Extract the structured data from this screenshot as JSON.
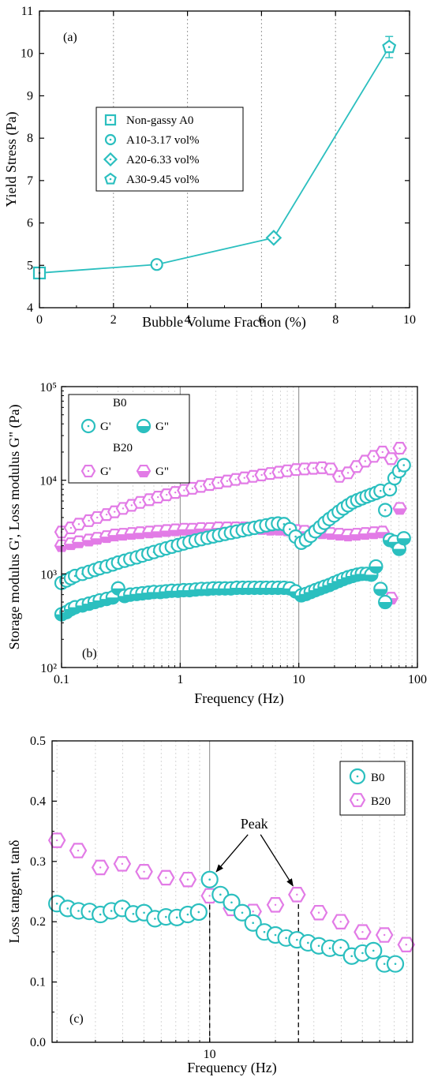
{
  "colors": {
    "cyan": "#2BBFBF",
    "magenta": "#E27BE6",
    "grid": "#BFBFBF",
    "axis": "#000000"
  },
  "chart_data": [
    {
      "type": "line",
      "panel_label": "(a)",
      "xlabel": "Bubble Volume Fraction (%)",
      "ylabel": "Yield Stress (Pa)",
      "xlim": [
        0,
        10
      ],
      "ylim": [
        4,
        11
      ],
      "xticks": [
        "0",
        "2",
        "4",
        "6",
        "8",
        "10"
      ],
      "yticks": [
        "4",
        "5",
        "6",
        "7",
        "8",
        "9",
        "10",
        "11"
      ],
      "grid": "vertical dashed at 2, 4, 6, 8",
      "legend_placement": "left-middle",
      "series": [
        {
          "x": [
            0,
            3.17,
            6.33,
            9.45
          ],
          "y": [
            4.82,
            5.02,
            5.65,
            10.15
          ],
          "yerr": [
            0.12,
            0.05,
            0.08,
            0.25
          ]
        }
      ],
      "points": [
        {
          "name": "Non-gassy A0",
          "marker": "square",
          "x": 0,
          "y": 4.82
        },
        {
          "name": "A10-3.17 vol%",
          "marker": "circle",
          "x": 3.17,
          "y": 5.02
        },
        {
          "name": "A20-6.33 vol%",
          "marker": "diamond",
          "x": 6.33,
          "y": 5.65
        },
        {
          "name": "A30-9.45 vol%",
          "marker": "pentagon",
          "x": 9.45,
          "y": 10.15
        }
      ]
    },
    {
      "type": "scatter",
      "panel_label": "(b)",
      "xlabel": "Frequency (Hz)",
      "ylabel": "Storage modulus G', Loss modulus G\" (Pa)",
      "xscale": "log",
      "yscale": "log",
      "xlim": [
        0.1,
        100
      ],
      "ylim": [
        100,
        100000
      ],
      "xticks": [
        "0.1",
        "1",
        "10",
        "100"
      ],
      "yticks": [
        "10²",
        "10³",
        "10⁴",
        "10⁵"
      ],
      "grid": "log minor vertical dotted, solid at 1 and 10",
      "legend_placement": "top-left",
      "legend": {
        "groups": [
          {
            "title": "B0",
            "entries": [
              "G'",
              "G\""
            ]
          },
          {
            "title": "B20",
            "entries": [
              "G'",
              "G\""
            ]
          }
        ]
      },
      "series": [
        {
          "group": "B0",
          "name": "G'",
          "marker": "open-circle",
          "x": [
            0.1,
            0.11,
            0.12,
            0.13,
            0.15,
            0.17,
            0.19,
            0.21,
            0.24,
            0.27,
            0.3,
            0.34,
            0.38,
            0.43,
            0.48,
            0.54,
            0.6,
            0.68,
            0.76,
            0.85,
            0.96,
            1.07,
            1.2,
            1.35,
            1.51,
            1.7,
            1.9,
            2.13,
            2.39,
            2.68,
            3.0,
            3.37,
            3.77,
            4.23,
            4.74,
            5.32,
            5.96,
            6.68,
            7.5,
            8.4,
            9.4,
            10.5,
            11.5,
            12.6,
            13.8,
            15.1,
            16.5,
            18.1,
            19.8,
            21.7,
            23.7,
            26.0,
            28.4,
            31.1,
            34.0,
            37.3,
            40.8,
            44.7,
            48.9,
            53.5,
            58.6,
            64.1,
            70.2,
            76.8
          ],
          "y": [
            800,
            850,
            900,
            950,
            1000,
            1050,
            1100,
            1150,
            1200,
            1260,
            1320,
            1380,
            1440,
            1500,
            1570,
            1640,
            1710,
            1790,
            1870,
            1950,
            2030,
            2110,
            2190,
            2270,
            2350,
            2430,
            2510,
            2590,
            2670,
            2750,
            2830,
            2920,
            3010,
            3100,
            3200,
            3300,
            3400,
            3450,
            3400,
            3000,
            2500,
            2150,
            2300,
            2550,
            2850,
            3150,
            3500,
            3850,
            4200,
            4600,
            5000,
            5400,
            5800,
            6100,
            6400,
            6700,
            7000,
            7300,
            7700,
            4800,
            8000,
            10500,
            12500,
            14500
          ]
        },
        {
          "group": "B0",
          "name": "G\"",
          "marker": "half-filled-circle",
          "x": [
            0.1,
            0.11,
            0.12,
            0.13,
            0.15,
            0.17,
            0.19,
            0.21,
            0.24,
            0.27,
            0.3,
            0.34,
            0.38,
            0.43,
            0.48,
            0.54,
            0.6,
            0.68,
            0.76,
            0.85,
            0.96,
            1.07,
            1.2,
            1.35,
            1.51,
            1.7,
            1.9,
            2.13,
            2.39,
            2.68,
            3.0,
            3.37,
            3.77,
            4.23,
            4.74,
            5.32,
            5.96,
            6.68,
            7.5,
            8.4,
            9.4,
            10.5,
            11.5,
            12.6,
            13.8,
            15.1,
            16.5,
            18.1,
            19.8,
            21.7,
            23.7,
            26.0,
            28.4,
            31.1,
            34.0,
            37.3,
            40.8,
            44.7,
            48.9,
            53.5,
            58.6,
            64.1,
            70.2,
            76.8
          ],
          "y": [
            370,
            390,
            420,
            440,
            460,
            480,
            500,
            520,
            540,
            560,
            700,
            580,
            600,
            610,
            620,
            630,
            640,
            640,
            650,
            660,
            660,
            670,
            670,
            680,
            690,
            690,
            700,
            700,
            700,
            700,
            710,
            710,
            710,
            710,
            710,
            710,
            710,
            710,
            710,
            700,
            650,
            590,
            610,
            640,
            670,
            700,
            730,
            760,
            800,
            840,
            880,
            920,
            950,
            980,
            1000,
            1000,
            980,
            1200,
            690,
            500,
            2300,
            2200,
            1850,
            2400
          ]
        },
        {
          "group": "B20",
          "name": "G'",
          "marker": "open-hexagon",
          "x": [
            0.1,
            0.12,
            0.14,
            0.17,
            0.2,
            0.24,
            0.28,
            0.33,
            0.39,
            0.46,
            0.55,
            0.65,
            0.77,
            0.91,
            1.08,
            1.27,
            1.5,
            1.78,
            2.1,
            2.49,
            2.94,
            3.48,
            4.12,
            4.87,
            5.76,
            6.8,
            8.0,
            9.5,
            11.2,
            13.3,
            15.7,
            18.6,
            22.0,
            26.0,
            30.7,
            36.3,
            43.0,
            50.8,
            60.1,
            71.0
          ],
          "y": [
            2800,
            3100,
            3400,
            3700,
            4000,
            4300,
            4600,
            5000,
            5400,
            5800,
            6200,
            6600,
            7000,
            7400,
            7800,
            8200,
            8600,
            9000,
            9400,
            9800,
            10200,
            10600,
            11000,
            11400,
            11800,
            12200,
            12600,
            13000,
            13200,
            13400,
            13600,
            13200,
            11000,
            12000,
            14000,
            16000,
            18000,
            20000,
            17000,
            22000
          ]
        },
        {
          "group": "B20",
          "name": "G\"",
          "marker": "half-filled-hexagon",
          "x": [
            0.1,
            0.12,
            0.14,
            0.17,
            0.2,
            0.24,
            0.28,
            0.33,
            0.39,
            0.46,
            0.55,
            0.65,
            0.77,
            0.91,
            1.08,
            1.27,
            1.5,
            1.78,
            2.1,
            2.49,
            2.94,
            3.48,
            4.12,
            4.87,
            5.76,
            6.8,
            8.0,
            9.5,
            11.2,
            13.3,
            15.7,
            18.6,
            22.0,
            26.0,
            30.7,
            36.3,
            43.0,
            50.8,
            60.1,
            71.0
          ],
          "y": [
            2000,
            2100,
            2200,
            2300,
            2400,
            2500,
            2600,
            2650,
            2700,
            2750,
            2800,
            2850,
            2900,
            2950,
            3000,
            3000,
            3050,
            3050,
            3100,
            3100,
            3100,
            3100,
            3100,
            3050,
            3000,
            3000,
            2950,
            2900,
            2850,
            2800,
            2750,
            2700,
            2650,
            2600,
            2650,
            2700,
            2750,
            2800,
            550,
            5000
          ]
        }
      ]
    },
    {
      "type": "scatter",
      "panel_label": "(c)",
      "xlabel": "Frequency (Hz)",
      "ylabel": "Loss tangent, tanδ",
      "xscale": "log",
      "xlim": [
        1.9,
        85
      ],
      "ylim": [
        0.0,
        0.5
      ],
      "xticks": [
        "10"
      ],
      "yticks": [
        "0.0",
        "0.1",
        "0.2",
        "0.3",
        "0.4",
        "0.5"
      ],
      "grid": "log minor vertical dotted, solid at 10",
      "legend_placement": "top-right",
      "annotation": {
        "text": "Peak",
        "x": 16,
        "y": 0.355,
        "arrows_to": [
          [
            10,
            0.27
          ],
          [
            25.5,
            0.245
          ]
        ]
      },
      "series": [
        {
          "name": "B0",
          "marker": "open-circle",
          "x": [
            2.0,
            2.24,
            2.51,
            2.82,
            3.16,
            3.55,
            3.98,
            4.47,
            5.01,
            5.62,
            6.31,
            7.08,
            7.94,
            8.91,
            10.0,
            11.2,
            12.6,
            14.1,
            15.8,
            17.8,
            20.0,
            22.4,
            25.1,
            28.2,
            31.6,
            35.5,
            39.8,
            44.7,
            50.1,
            56.2,
            63.1,
            70.8
          ],
          "y": [
            0.23,
            0.222,
            0.218,
            0.217,
            0.212,
            0.218,
            0.222,
            0.213,
            0.215,
            0.205,
            0.208,
            0.207,
            0.212,
            0.216,
            0.27,
            0.245,
            0.232,
            0.215,
            0.198,
            0.183,
            0.178,
            0.173,
            0.17,
            0.165,
            0.16,
            0.156,
            0.157,
            0.143,
            0.148,
            0.152,
            0.13,
            0.13
          ]
        },
        {
          "name": "B20",
          "marker": "open-hexagon",
          "x": [
            2.0,
            2.5,
            3.16,
            3.98,
            5.01,
            6.31,
            7.94,
            10.0,
            12.6,
            15.8,
            20.0,
            25.1,
            31.6,
            39.8,
            50.1,
            63.1,
            79.4
          ],
          "y": [
            0.335,
            0.318,
            0.29,
            0.296,
            0.283,
            0.273,
            0.27,
            0.243,
            0.222,
            0.217,
            0.228,
            0.245,
            0.215,
            0.2,
            0.183,
            0.178,
            0.162
          ]
        }
      ]
    }
  ]
}
